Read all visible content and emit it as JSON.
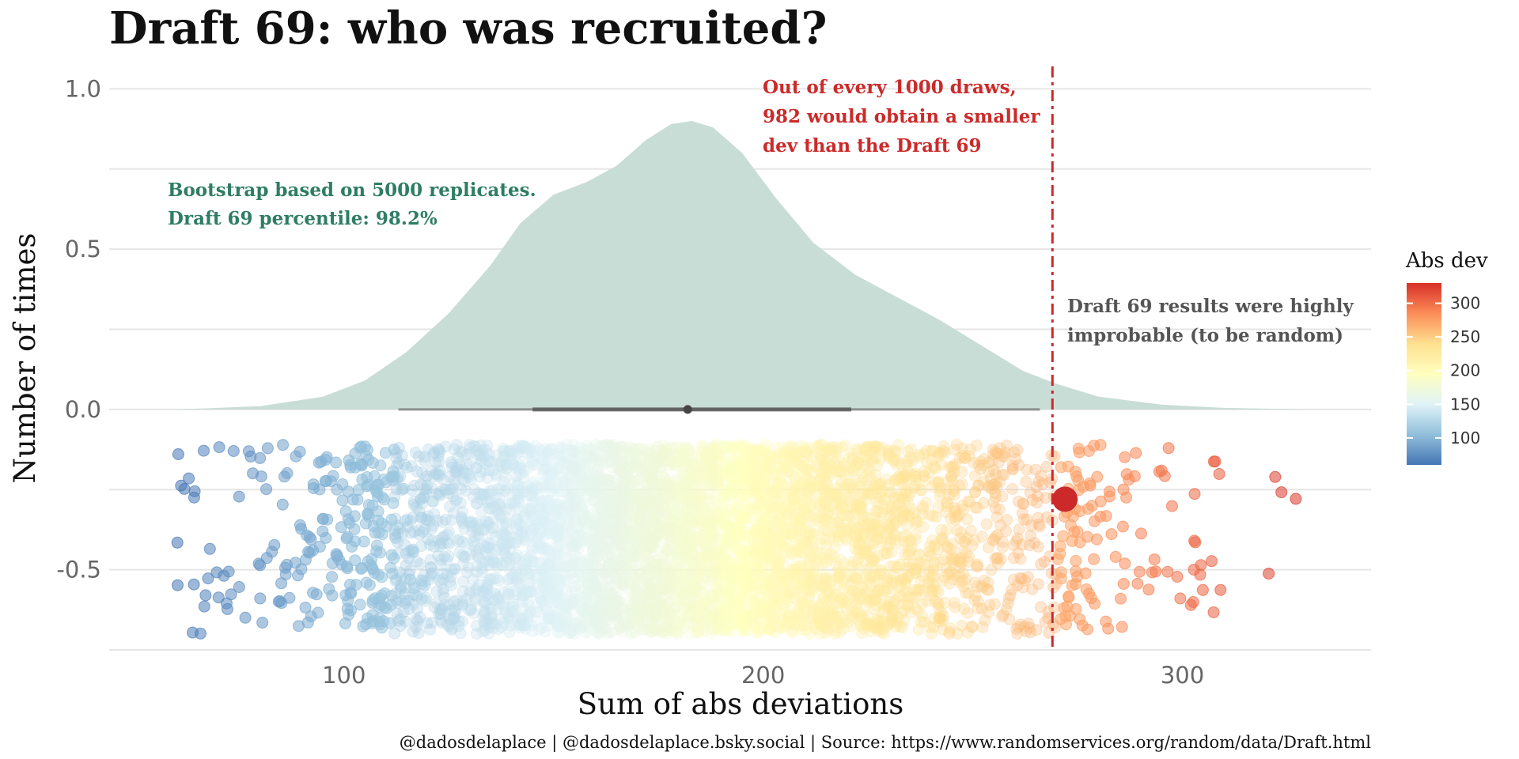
{
  "chart_data": {
    "type": "density_and_jitter",
    "title": "Draft 69: who was recruited?",
    "xlabel": "Sum of abs deviations",
    "ylabel": "Number of times",
    "xlim": [
      44,
      345
    ],
    "ylim": [
      -0.75,
      1.08
    ],
    "x_ticks": [
      100,
      200,
      300
    ],
    "y_ticks": [
      1.0,
      0.5,
      0.0,
      -0.5
    ],
    "y_tick_labels": [
      "1.0",
      "0.5",
      "0.0",
      "-0.5"
    ],
    "grid": true,
    "density": {
      "x": [
        60,
        80,
        95,
        105,
        115,
        125,
        135,
        142,
        150,
        158,
        165,
        172,
        178,
        183,
        188,
        195,
        203,
        212,
        222,
        232,
        242,
        252,
        262,
        270,
        280,
        295,
        310,
        330
      ],
      "y": [
        0.0,
        0.01,
        0.04,
        0.09,
        0.18,
        0.3,
        0.45,
        0.58,
        0.67,
        0.71,
        0.76,
        0.84,
        0.89,
        0.9,
        0.88,
        0.8,
        0.66,
        0.52,
        0.42,
        0.35,
        0.28,
        0.2,
        0.12,
        0.08,
        0.04,
        0.015,
        0.005,
        0.0
      ],
      "color": "#c8ddd6"
    },
    "boxplot": {
      "whisker_low": 113,
      "q1": 145,
      "median": 182,
      "q3": 221,
      "whisker_high": 266
    },
    "observed": {
      "value": 272,
      "y": -0.28,
      "color": "#cc2a2a"
    },
    "threshold_x": 269,
    "jitter": {
      "n_points": 5000,
      "x_min": 60,
      "x_max": 330,
      "y_range": [
        -0.7,
        -0.11
      ],
      "color_scale": [
        "#4575b4",
        "#91bfdb",
        "#e0f3f8",
        "#ffffbf",
        "#fee090",
        "#fc8d59",
        "#d73027"
      ]
    },
    "annotations": [
      {
        "line1": "Bootstrap based on 5000 replicates.",
        "line2": "Draft 69 percentile: 98.2%",
        "color": "#2e7d64"
      },
      {
        "line1": "Out of every 1000 draws,",
        "line2": "982 would obtain a smaller",
        "line3": "dev than the Draft 69",
        "color": "#cc2a2a"
      },
      {
        "line1": "Draft 69 results were highly",
        "line2": "improbable (to be random)",
        "color": "#555555"
      }
    ],
    "legend": {
      "title": "Abs dev",
      "ticks": [
        100,
        150,
        200,
        250,
        300
      ],
      "range": [
        60,
        330
      ],
      "placement": "right"
    },
    "caption": "@dadosdelaplace | @dadosdelaplace.bsky.social | Source: https://www.randomservices.org/random/data/Draft.html"
  }
}
